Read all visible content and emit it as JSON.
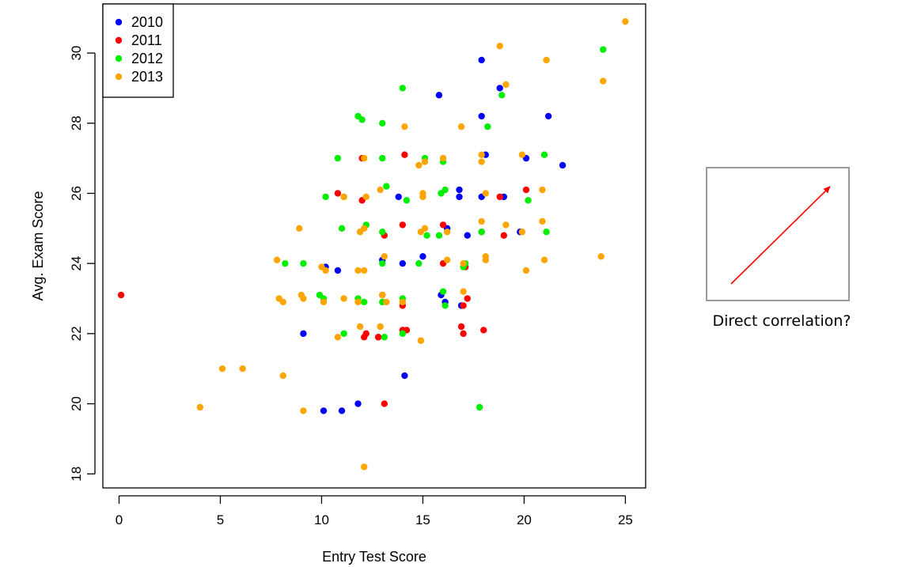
{
  "chart_data": {
    "type": "scatter",
    "xlabel": "Entry Test Score",
    "ylabel": "Avg. Exam Score",
    "xlim": [
      -0.8,
      26
    ],
    "ylim": [
      17.6,
      31.4
    ],
    "xticks": [
      0,
      5,
      10,
      15,
      20,
      25
    ],
    "yticks": [
      18,
      20,
      22,
      24,
      26,
      28,
      30
    ],
    "legend_position": "top-left",
    "series": [
      {
        "name": "2010",
        "color": "#0000ff",
        "points": [
          [
            15.8,
            28.8
          ],
          [
            17.9,
            29.8
          ],
          [
            17.9,
            28.2
          ],
          [
            18.1,
            27.1
          ],
          [
            18.8,
            29.0
          ],
          [
            21.2,
            28.2
          ],
          [
            21.9,
            26.8
          ],
          [
            20.1,
            27.0
          ],
          [
            13.8,
            25.9
          ],
          [
            16.8,
            25.9
          ],
          [
            16.8,
            26.1
          ],
          [
            17.9,
            25.9
          ],
          [
            19.0,
            25.9
          ],
          [
            19.8,
            24.9
          ],
          [
            10.2,
            23.9
          ],
          [
            10.8,
            23.8
          ],
          [
            13.0,
            24.1
          ],
          [
            14.0,
            24.0
          ],
          [
            15.0,
            24.2
          ],
          [
            16.2,
            25.0
          ],
          [
            17.2,
            24.8
          ],
          [
            15.9,
            23.1
          ],
          [
            16.1,
            22.9
          ],
          [
            16.9,
            22.8
          ],
          [
            9.1,
            22.0
          ],
          [
            12.8,
            21.9
          ],
          [
            14.1,
            20.8
          ],
          [
            10.1,
            19.8
          ],
          [
            11.0,
            19.8
          ],
          [
            11.8,
            20.0
          ]
        ]
      },
      {
        "name": "2011",
        "color": "#ff0000",
        "points": [
          [
            0.1,
            23.1
          ],
          [
            10.8,
            26.0
          ],
          [
            12.0,
            25.8
          ],
          [
            12.0,
            27.0
          ],
          [
            14.1,
            27.1
          ],
          [
            14.0,
            25.1
          ],
          [
            16.0,
            25.1
          ],
          [
            16.0,
            24.0
          ],
          [
            17.1,
            23.9
          ],
          [
            13.1,
            24.8
          ],
          [
            13.0,
            23.1
          ],
          [
            14.0,
            22.8
          ],
          [
            17.0,
            22.8
          ],
          [
            17.2,
            23.0
          ],
          [
            16.9,
            22.2
          ],
          [
            17.0,
            22.0
          ],
          [
            18.0,
            22.1
          ],
          [
            12.1,
            21.9
          ],
          [
            12.2,
            22.0
          ],
          [
            12.8,
            21.9
          ],
          [
            14.0,
            22.1
          ],
          [
            14.2,
            22.1
          ],
          [
            13.1,
            20.0
          ],
          [
            18.8,
            25.9
          ],
          [
            19.0,
            24.8
          ],
          [
            20.1,
            26.1
          ],
          [
            17.9,
            24.9
          ]
        ]
      },
      {
        "name": "2012",
        "color": "#00ee00",
        "points": [
          [
            11.8,
            28.2
          ],
          [
            12.0,
            28.1
          ],
          [
            13.0,
            28.0
          ],
          [
            14.0,
            29.0
          ],
          [
            18.9,
            28.8
          ],
          [
            23.9,
            30.1
          ],
          [
            21.0,
            27.1
          ],
          [
            18.2,
            27.9
          ],
          [
            10.8,
            27.0
          ],
          [
            13.0,
            27.0
          ],
          [
            15.1,
            27.0
          ],
          [
            16.0,
            26.9
          ],
          [
            10.2,
            25.9
          ],
          [
            11.1,
            25.9
          ],
          [
            13.2,
            26.2
          ],
          [
            14.2,
            25.8
          ],
          [
            15.9,
            26.0
          ],
          [
            16.1,
            26.1
          ],
          [
            20.2,
            25.8
          ],
          [
            11.0,
            25.0
          ],
          [
            12.2,
            25.1
          ],
          [
            13.0,
            24.9
          ],
          [
            15.2,
            24.8
          ],
          [
            15.8,
            24.8
          ],
          [
            17.9,
            24.9
          ],
          [
            21.1,
            24.9
          ],
          [
            8.2,
            24.0
          ],
          [
            9.1,
            24.0
          ],
          [
            13.0,
            24.0
          ],
          [
            14.8,
            24.0
          ],
          [
            17.0,
            23.9
          ],
          [
            17.1,
            24.0
          ],
          [
            9.9,
            23.1
          ],
          [
            10.1,
            23.0
          ],
          [
            11.8,
            23.0
          ],
          [
            12.1,
            22.9
          ],
          [
            13.0,
            22.9
          ],
          [
            14.0,
            23.0
          ],
          [
            16.0,
            23.2
          ],
          [
            16.1,
            22.8
          ],
          [
            11.1,
            22.0
          ],
          [
            13.1,
            21.9
          ],
          [
            14.0,
            22.0
          ],
          [
            17.8,
            19.9
          ]
        ]
      },
      {
        "name": "2013",
        "color": "#ffa500",
        "points": [
          [
            25.0,
            30.9
          ],
          [
            18.8,
            30.2
          ],
          [
            21.1,
            29.8
          ],
          [
            19.1,
            29.1
          ],
          [
            23.9,
            29.2
          ],
          [
            14.1,
            27.9
          ],
          [
            16.9,
            27.9
          ],
          [
            12.1,
            27.0
          ],
          [
            14.8,
            26.8
          ],
          [
            15.1,
            26.9
          ],
          [
            16.0,
            27.0
          ],
          [
            17.9,
            26.9
          ],
          [
            17.9,
            27.1
          ],
          [
            19.9,
            27.1
          ],
          [
            12.9,
            26.1
          ],
          [
            15.0,
            26.0
          ],
          [
            15.0,
            25.9
          ],
          [
            18.1,
            26.0
          ],
          [
            20.9,
            26.1
          ],
          [
            12.2,
            25.9
          ],
          [
            11.1,
            25.9
          ],
          [
            8.9,
            25.0
          ],
          [
            12.1,
            25.0
          ],
          [
            11.9,
            24.9
          ],
          [
            14.9,
            24.9
          ],
          [
            15.1,
            25.0
          ],
          [
            16.2,
            24.9
          ],
          [
            17.9,
            25.2
          ],
          [
            19.1,
            25.1
          ],
          [
            19.9,
            24.9
          ],
          [
            20.9,
            25.2
          ],
          [
            7.8,
            24.1
          ],
          [
            10.0,
            23.9
          ],
          [
            10.2,
            23.8
          ],
          [
            11.8,
            23.8
          ],
          [
            12.1,
            23.8
          ],
          [
            13.1,
            24.2
          ],
          [
            16.2,
            24.1
          ],
          [
            17.0,
            24.0
          ],
          [
            18.1,
            24.2
          ],
          [
            18.1,
            24.1
          ],
          [
            21.0,
            24.1
          ],
          [
            23.8,
            24.2
          ],
          [
            20.1,
            23.8
          ],
          [
            7.9,
            23.0
          ],
          [
            8.1,
            22.9
          ],
          [
            9.0,
            23.1
          ],
          [
            9.1,
            23.0
          ],
          [
            10.1,
            22.9
          ],
          [
            11.1,
            23.0
          ],
          [
            11.8,
            22.9
          ],
          [
            13.0,
            23.1
          ],
          [
            13.2,
            22.9
          ],
          [
            14.0,
            22.9
          ],
          [
            17.0,
            23.2
          ],
          [
            11.9,
            22.2
          ],
          [
            10.8,
            21.9
          ],
          [
            12.9,
            22.2
          ],
          [
            14.9,
            21.8
          ],
          [
            5.1,
            21.0
          ],
          [
            6.1,
            21.0
          ],
          [
            8.1,
            20.8
          ],
          [
            4.0,
            19.9
          ],
          [
            9.1,
            19.8
          ],
          [
            12.1,
            18.2
          ]
        ]
      }
    ]
  },
  "annotation": {
    "caption": "Direct correlation?",
    "arrow_color": "#ff0000"
  }
}
